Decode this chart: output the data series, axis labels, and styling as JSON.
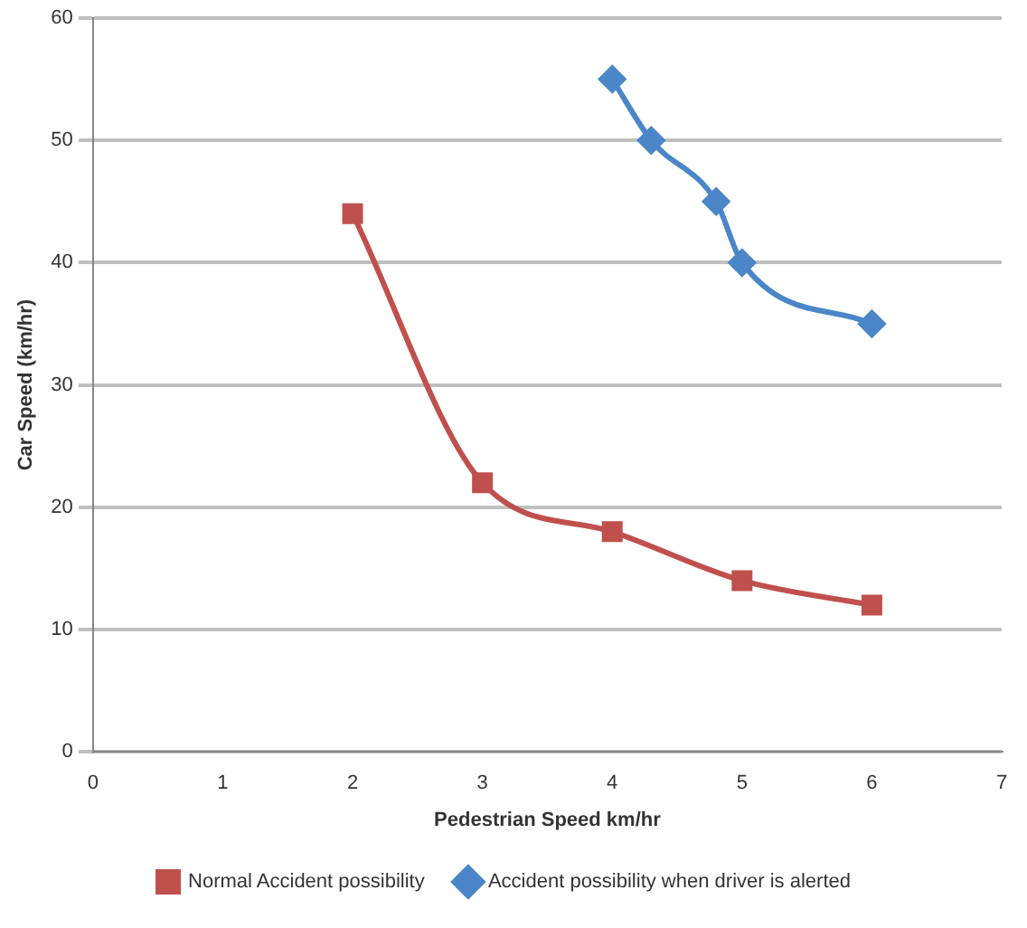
{
  "chart_data": {
    "type": "line",
    "xlabel": "Pedestrian Speed km/hr",
    "ylabel": "Car Speed (km/hr)",
    "series": [
      {
        "name": "Normal Accident possibility",
        "color": "#c0504d",
        "marker": "square",
        "x": [
          2,
          3,
          4,
          5,
          6
        ],
        "values": [
          44,
          22,
          18,
          14,
          12
        ]
      },
      {
        "name": "Accident possibility when driver is alerted",
        "color": "#4a86c8",
        "marker": "diamond",
        "x": [
          4,
          4.3,
          4.8,
          5,
          6
        ],
        "values": [
          55,
          50,
          45,
          40,
          35
        ]
      }
    ],
    "xlim": [
      0,
      7
    ],
    "xticks": [
      0,
      1,
      2,
      3,
      4,
      5,
      6,
      7
    ],
    "ylim": [
      0,
      60
    ],
    "yticks": [
      0,
      10,
      20,
      30,
      40,
      50,
      60
    ],
    "grid": "y",
    "legend": "bottom",
    "line_style": "solid"
  }
}
